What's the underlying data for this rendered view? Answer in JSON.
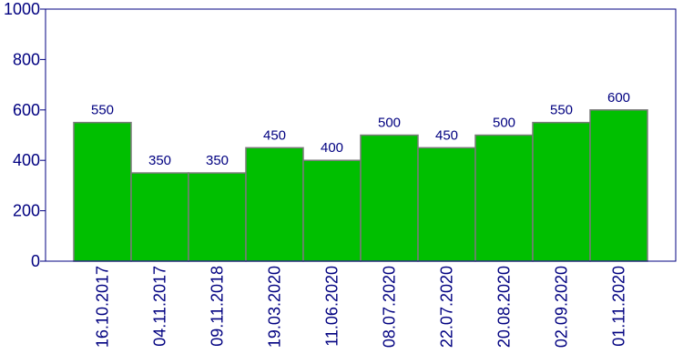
{
  "colors": {
    "bar_fill": "#00bf00",
    "bar_stroke": "#7a7a7a",
    "axis": "#000080",
    "text": "#000080",
    "background": "#ffffff"
  },
  "chart_data": {
    "type": "bar",
    "title": "",
    "xlabel": "",
    "ylabel": "",
    "ylim": [
      0,
      1000
    ],
    "yticks": [
      "0",
      "200",
      "400",
      "600",
      "800",
      "1000"
    ],
    "grid": false,
    "categories": [
      "16.10.2017",
      "04.11.2017",
      "09.11.2018",
      "19.03.2020",
      "11.06.2020",
      "08.07.2020",
      "22.07.2020",
      "20.08.2020",
      "02.09.2020",
      "01.11.2020"
    ],
    "values": [
      550,
      350,
      350,
      450,
      400,
      500,
      450,
      500,
      550,
      600
    ],
    "data_labels": [
      "550",
      "350",
      "350",
      "450",
      "400",
      "500",
      "450",
      "500",
      "550",
      "600"
    ]
  }
}
